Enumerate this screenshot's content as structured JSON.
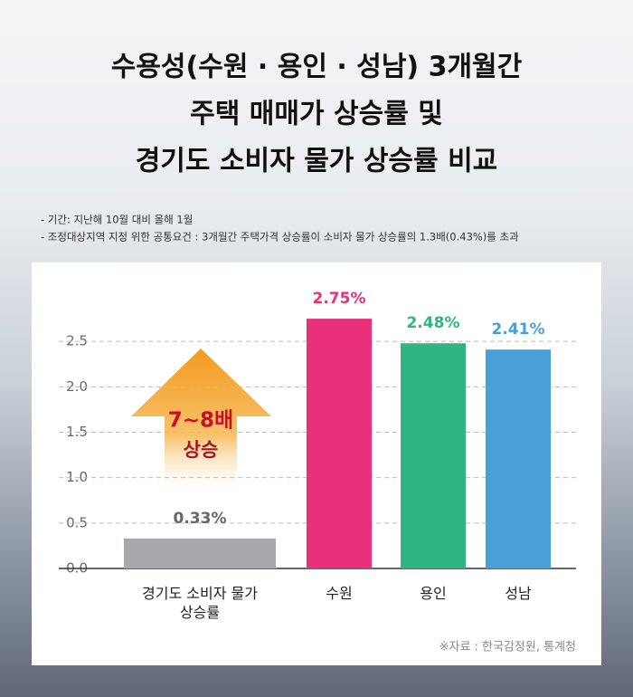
{
  "chart_data": {
    "type": "bar",
    "title": [
      "수용성(수원 · 용인 · 성남) 3개월간",
      "주택 매매가 상승률 및",
      "경기도 소비자 물가 상승률 비교"
    ],
    "notes": [
      "- 기간: 지난해 10월 대비 올해 1월",
      "- 조정대상지역 지정 위한 공통요건 : 3개월간 주택가격 상승률이 소비자 물가 상승률의 1.3배(0.43%)를 초과"
    ],
    "categories": [
      "경기도 소비자 물가 상승률",
      "수원",
      "용인",
      "성남"
    ],
    "values": [
      0.33,
      2.75,
      2.48,
      2.41
    ],
    "value_labels": [
      "0.33%",
      "2.75%",
      "2.48%",
      "2.41%"
    ],
    "colors": [
      "#a7a9ad",
      "#e8317a",
      "#2fb584",
      "#4a9fd8"
    ],
    "ylim": [
      0,
      3
    ],
    "yticks": [
      {
        "value": 0,
        "label": "0.0"
      },
      0.5,
      {
        "value": 1,
        "label": "1.0"
      },
      1.5,
      {
        "value": 2,
        "label": "2.0"
      },
      2.5
    ],
    "grid": true,
    "annotations": [
      "7~8배",
      "상승"
    ],
    "source": "※자료 : 한국감정원, 통계청"
  }
}
